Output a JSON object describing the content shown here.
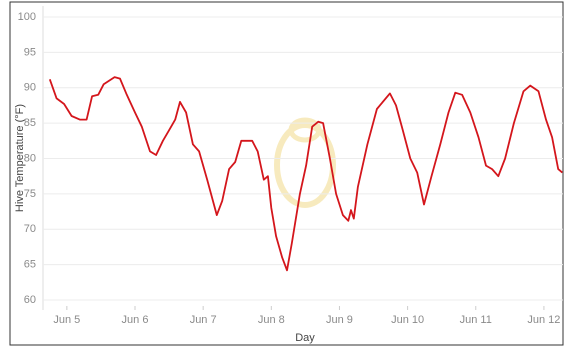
{
  "chart_data": {
    "type": "line",
    "x_label": "Day",
    "y_label": "Hive Temperature (°F)",
    "xlim": [
      4.65,
      12.28
    ],
    "ylim": [
      60,
      100
    ],
    "yticks": [
      60,
      65,
      70,
      75,
      80,
      85,
      90,
      95,
      100
    ],
    "xticks": [
      {
        "value": 5,
        "label": "Jun 5"
      },
      {
        "value": 6,
        "label": "Jun 6"
      },
      {
        "value": 7,
        "label": "Jun 7"
      },
      {
        "value": 8,
        "label": "Jun 8"
      },
      {
        "value": 9,
        "label": "Jun 9"
      },
      {
        "value": 10,
        "label": "Jun 10"
      },
      {
        "value": 11,
        "label": "Jun 11"
      },
      {
        "value": 12,
        "label": "Jun 12"
      }
    ],
    "grid": true,
    "x": [
      4.75,
      4.85,
      4.96,
      5.07,
      5.19,
      5.29,
      5.37,
      5.46,
      5.54,
      5.7,
      5.78,
      5.88,
      6.0,
      6.1,
      6.22,
      6.31,
      6.41,
      6.5,
      6.59,
      6.66,
      6.75,
      6.85,
      6.94,
      7.06,
      7.2,
      7.28,
      7.38,
      7.47,
      7.56,
      7.72,
      7.8,
      7.89,
      7.95,
      8.0,
      8.07,
      8.16,
      8.23,
      8.3,
      8.42,
      8.51,
      8.6,
      8.69,
      8.76,
      8.86,
      8.95,
      9.05,
      9.13,
      9.17,
      9.21,
      9.27,
      9.41,
      9.55,
      9.74,
      9.83,
      9.93,
      10.04,
      10.14,
      10.24,
      10.35,
      10.48,
      10.6,
      10.7,
      10.8,
      10.92,
      11.04,
      11.15,
      11.24,
      11.33,
      11.43,
      11.56,
      11.7,
      11.8,
      11.92,
      12.03,
      12.12,
      12.21,
      12.27
    ],
    "series": [
      {
        "color": "#d4161c",
        "values": [
          91.2,
          88.5,
          87.7,
          86,
          85.5,
          85.5,
          88.8,
          89,
          90.5,
          91.5,
          91.3,
          89,
          86.5,
          84.5,
          81,
          80.5,
          82.5,
          84,
          85.5,
          88,
          86.5,
          82,
          81,
          77,
          72,
          74,
          78.5,
          79.5,
          82.5,
          82.5,
          81,
          77,
          77.5,
          73,
          69,
          66,
          64.2,
          68,
          75,
          79,
          84.5,
          85.2,
          85,
          80,
          75,
          72,
          71.2,
          72.7,
          71.5,
          76,
          82,
          87,
          89.2,
          87.5,
          84,
          80,
          78,
          73.5,
          77.5,
          82,
          86.5,
          89.3,
          89,
          86.5,
          83,
          79,
          78.5,
          77.5,
          80,
          85,
          89.5,
          90.3,
          89.5,
          85.5,
          83,
          78.5,
          78
        ]
      }
    ]
  }
}
